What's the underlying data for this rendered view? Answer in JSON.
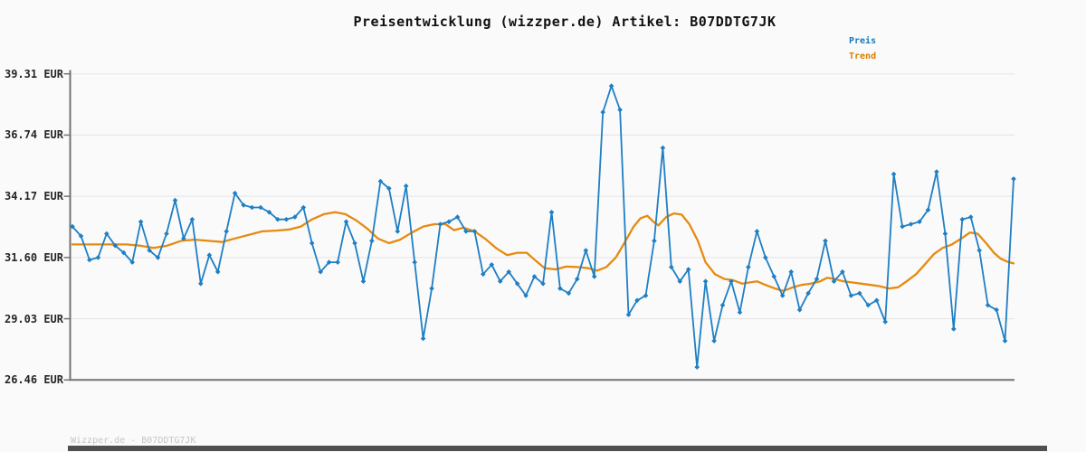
{
  "header": {
    "title": "Preisentwicklung (wizzper.de) Artikel: B07DDTG7JK"
  },
  "legend": {
    "items": [
      {
        "label": "Preis",
        "color": "#1778be"
      },
      {
        "label": "Trend",
        "color": "#d57f00"
      }
    ]
  },
  "footer": {
    "watermark": "Wizzper.de - B07DDTG7JK"
  },
  "colors": {
    "price_line": "#1f7fc4",
    "trend_line": "#e68a10",
    "grid": "#e4e4e4",
    "axis": "#737373",
    "background": "#fafafa",
    "bottom_bar": "#4f4f4f"
  },
  "chart_data": {
    "type": "line",
    "title": "Preisentwicklung (wizzper.de) Artikel: B07DDTG7JK",
    "xlabel": "",
    "ylabel": "EUR",
    "ylim": [
      26.46,
      39.31
    ],
    "grid": "horizontal",
    "legend_position": "top-right",
    "x_axis_labels_visible": false,
    "y_ticks": {
      "values": [
        39.31,
        36.74,
        34.17,
        31.6,
        29.03,
        26.46
      ],
      "labels": [
        "39.31 EUR",
        "36.74 EUR",
        "34.17 EUR",
        "31.60 EUR",
        "29.03 EUR",
        "26.46 EUR"
      ]
    },
    "series": [
      {
        "name": "Preis",
        "color": "#1f7fc4",
        "marker": "diamond",
        "values": [
          32.9,
          32.5,
          31.5,
          31.6,
          32.6,
          32.1,
          31.8,
          31.4,
          33.1,
          31.9,
          31.6,
          32.6,
          34.0,
          32.4,
          33.2,
          30.5,
          31.7,
          31.0,
          32.7,
          34.3,
          33.8,
          33.7,
          33.7,
          33.5,
          33.2,
          33.2,
          33.3,
          33.7,
          32.2,
          31.0,
          31.4,
          31.4,
          33.1,
          32.2,
          30.6,
          32.3,
          34.8,
          34.5,
          32.7,
          34.6,
          31.4,
          28.2,
          30.3,
          33.0,
          33.1,
          33.3,
          32.7,
          32.7,
          30.9,
          31.3,
          30.6,
          31.0,
          30.5,
          30.0,
          30.8,
          30.5,
          33.5,
          30.3,
          30.1,
          30.7,
          31.9,
          30.8,
          37.7,
          38.8,
          37.8,
          29.2,
          29.8,
          30.0,
          32.3,
          36.2,
          31.2,
          30.6,
          31.1,
          27.0,
          30.6,
          28.1,
          29.6,
          30.6,
          29.3,
          31.2,
          32.7,
          31.6,
          30.8,
          30.0,
          31.0,
          29.4,
          30.1,
          30.7,
          32.3,
          30.6,
          31.0,
          30.0,
          30.1,
          29.6,
          29.8,
          28.9,
          35.1,
          32.9,
          33.0,
          33.1,
          33.6,
          35.2,
          32.6,
          28.6,
          33.2,
          33.3,
          31.9,
          29.6,
          29.4,
          28.1,
          34.9
        ]
      },
      {
        "name": "Trend",
        "color": "#e68a10",
        "marker": "none",
        "points_index_value": [
          [
            0,
            32.15
          ],
          [
            2.1,
            32.15
          ],
          [
            4.2,
            32.15
          ],
          [
            6.3,
            32.15
          ],
          [
            7.9,
            32.1
          ],
          [
            9.5,
            32.0
          ],
          [
            11.1,
            32.1
          ],
          [
            12.7,
            32.3
          ],
          [
            14.3,
            32.35
          ],
          [
            15.9,
            32.3
          ],
          [
            17.5,
            32.25
          ],
          [
            19,
            32.4
          ],
          [
            20.6,
            32.55
          ],
          [
            22.2,
            32.7
          ],
          [
            23.8,
            32.73
          ],
          [
            25.4,
            32.78
          ],
          [
            26.7,
            32.9
          ],
          [
            28,
            33.2
          ],
          [
            29.4,
            33.42
          ],
          [
            30.7,
            33.5
          ],
          [
            31.9,
            33.42
          ],
          [
            33.2,
            33.15
          ],
          [
            34.5,
            32.8
          ],
          [
            35.7,
            32.4
          ],
          [
            37,
            32.2
          ],
          [
            38.3,
            32.35
          ],
          [
            39.7,
            32.65
          ],
          [
            41,
            32.9
          ],
          [
            42.3,
            33.0
          ],
          [
            43.6,
            33.0
          ],
          [
            44.6,
            32.75
          ],
          [
            45.7,
            32.85
          ],
          [
            47,
            32.7
          ],
          [
            48.2,
            32.4
          ],
          [
            49.5,
            32.0
          ],
          [
            50.8,
            31.7
          ],
          [
            52,
            31.8
          ],
          [
            53.1,
            31.8
          ],
          [
            54.2,
            31.45
          ],
          [
            55.2,
            31.15
          ],
          [
            56.5,
            31.1
          ],
          [
            57.7,
            31.22
          ],
          [
            59,
            31.2
          ],
          [
            60.3,
            31.15
          ],
          [
            61.3,
            31.05
          ],
          [
            62.4,
            31.2
          ],
          [
            63.5,
            31.6
          ],
          [
            64.5,
            32.2
          ],
          [
            65.6,
            32.9
          ],
          [
            66.4,
            33.25
          ],
          [
            67.2,
            33.35
          ],
          [
            67.9,
            33.1
          ],
          [
            68.5,
            32.95
          ],
          [
            69.4,
            33.3
          ],
          [
            70.3,
            33.45
          ],
          [
            71.2,
            33.4
          ],
          [
            72.1,
            33.0
          ],
          [
            73.1,
            32.3
          ],
          [
            74,
            31.4
          ],
          [
            75.1,
            30.9
          ],
          [
            76.2,
            30.7
          ],
          [
            77.2,
            30.65
          ],
          [
            78.3,
            30.5
          ],
          [
            79.1,
            30.55
          ],
          [
            80,
            30.6
          ],
          [
            81,
            30.45
          ],
          [
            82.1,
            30.3
          ],
          [
            83.1,
            30.2
          ],
          [
            84.2,
            30.35
          ],
          [
            85.2,
            30.45
          ],
          [
            86.3,
            30.5
          ],
          [
            87.4,
            30.6
          ],
          [
            88.2,
            30.75
          ],
          [
            89.1,
            30.7
          ],
          [
            90.1,
            30.6
          ],
          [
            91.2,
            30.55
          ],
          [
            92.2,
            30.5
          ],
          [
            93.3,
            30.45
          ],
          [
            94.3,
            30.4
          ],
          [
            95.4,
            30.3
          ],
          [
            96.5,
            30.35
          ],
          [
            97.5,
            30.6
          ],
          [
            98.6,
            30.9
          ],
          [
            99.6,
            31.3
          ],
          [
            100.7,
            31.75
          ],
          [
            101.7,
            32.0
          ],
          [
            102.8,
            32.15
          ],
          [
            103.9,
            32.4
          ],
          [
            104.9,
            32.65
          ],
          [
            105.8,
            32.6
          ],
          [
            106.8,
            32.2
          ],
          [
            107.7,
            31.8
          ],
          [
            108.5,
            31.55
          ],
          [
            109.3,
            31.42
          ],
          [
            110,
            31.35
          ]
        ]
      }
    ]
  }
}
